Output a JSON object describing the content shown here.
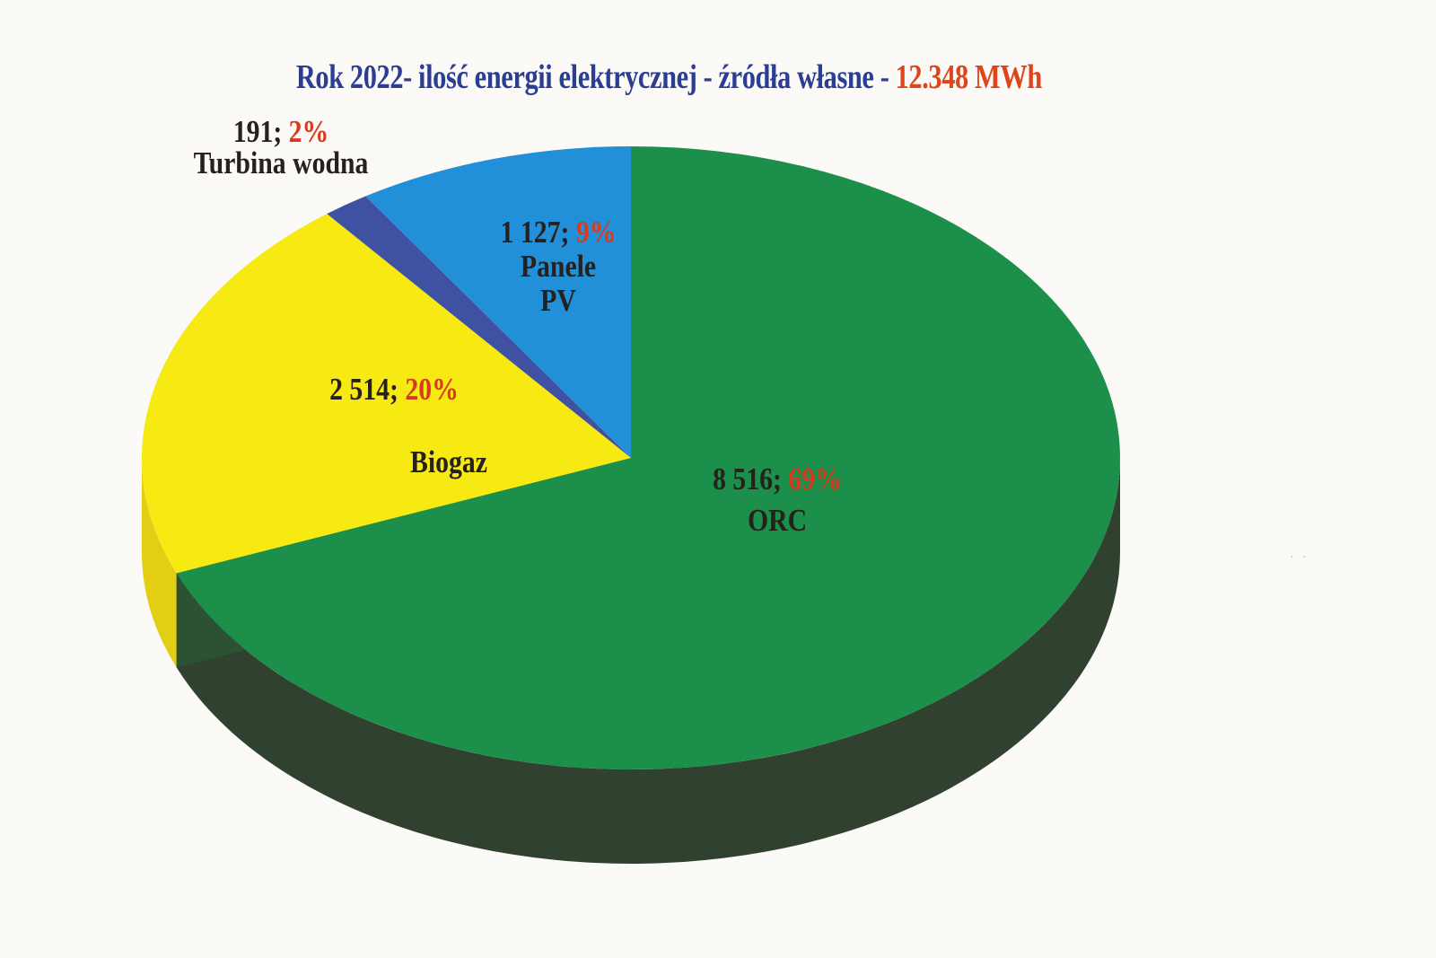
{
  "title": {
    "text_main": "Rok 2022- ilość energii elektrycznej  - źródła własne - ",
    "text_value": "12.348 MWh",
    "color_main": "#2c3e93",
    "color_value": "#df451c"
  },
  "background_color": "#fbfaf7",
  "label_colors": {
    "value_text": "#26211d",
    "pct_text": "#d83a20"
  },
  "chart_data": {
    "type": "pie",
    "title": "Rok 2022- ilość energii elektrycznej - źródła własne - 12.348 MWh",
    "total_value": 12348,
    "total_label": "12.348 MWh",
    "unit": "MWh",
    "effect": "3d",
    "start_angle_deg": 0,
    "clockwise": true,
    "legend": "none",
    "slices": [
      {
        "name": "ORC",
        "value": 8516,
        "pct": 69,
        "value_label": "8 516; ",
        "pct_label": "69%",
        "color": "#1c8f4a",
        "wall_color": "#31412f",
        "radial_wall_color": "#2c5133"
      },
      {
        "name": "Biogaz",
        "value": 2514,
        "pct": 20,
        "value_label": "2 514; ",
        "pct_label": "20%",
        "color": "#f6ea12",
        "wall_color": "#e2ce12",
        "radial_wall_color": null
      },
      {
        "name": "Turbina wodna",
        "value": 191,
        "pct": 2,
        "value_label": "191; ",
        "pct_label": "2%",
        "color": "#3f51a0",
        "wall_color": null,
        "radial_wall_color": null
      },
      {
        "name": "Panele PV",
        "name_line1": "Panele",
        "name_line2": "PV",
        "value": 1127,
        "pct": 9,
        "value_label": "1 127; ",
        "pct_label": "9%",
        "color": "#2190d8",
        "wall_color": null,
        "radial_wall_color": null
      }
    ]
  }
}
